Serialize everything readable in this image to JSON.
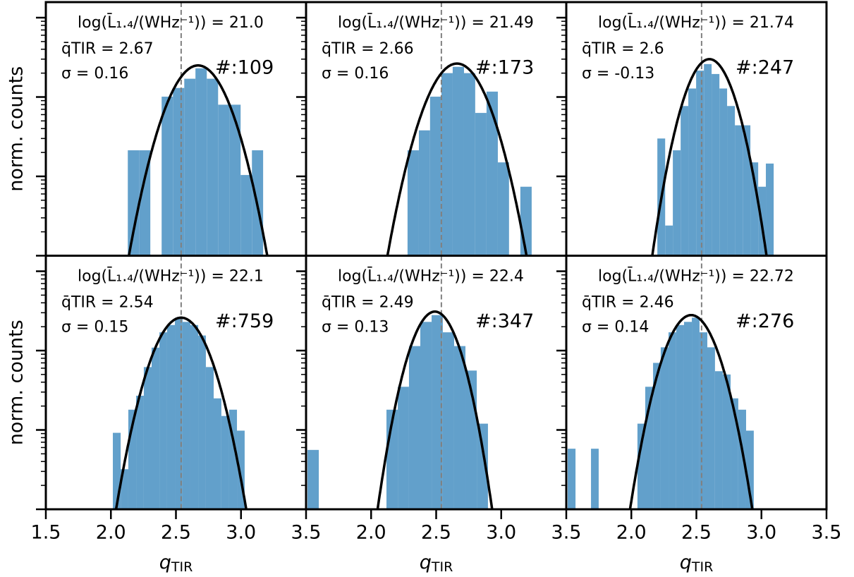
{
  "chart_data": [
    {
      "type": "histogram",
      "annotation": "log(L̄₁.₄/(WHz⁻¹)) = 21.0",
      "q_mean": 2.67,
      "q_mean_label": "q̄TIR = 2.67",
      "sigma": 0.16,
      "sigma_label": "σ = 0.16",
      "n_label": "#:109",
      "fit_amplitude": 0.25,
      "reference_q": 2.54,
      "ylabel": "norm. counts",
      "bins": [
        2.13,
        2.217,
        2.303,
        2.39,
        2.477,
        2.564,
        2.65,
        2.737,
        2.824,
        2.91,
        2.997,
        3.084,
        3.17
      ],
      "counts": [
        0.0213,
        0.0213,
        0,
        0.101,
        0.13,
        0.17,
        0.23,
        0.17,
        0.08,
        0.08,
        0.0104,
        0.0213
      ],
      "color": "#62a0cb",
      "fit_color": "#000000",
      "text_color": "#0000ff",
      "log_y": true,
      "xlim": [
        1.5,
        3.5
      ],
      "ylim": [
        0.001,
        1.57
      ],
      "yticks": [
        0.001,
        0.01,
        0.1,
        1
      ]
    },
    {
      "type": "histogram",
      "annotation": "log(L̄₁.₄/(WHz⁻¹)) = 21.49",
      "q_mean": 2.66,
      "q_mean_label": "q̄TIR = 2.66",
      "sigma": 0.16,
      "sigma_label": "σ = 0.16",
      "n_label": "#:173",
      "fit_amplitude": 0.264,
      "reference_q": 2.54,
      "bins": [
        2.28,
        2.367,
        2.453,
        2.54,
        2.627,
        2.714,
        2.8,
        2.887,
        2.974,
        3.06,
        3.147,
        3.234
      ],
      "counts": [
        0.0213,
        0.038,
        0.101,
        0.2,
        0.24,
        0.2,
        0.063,
        0.117,
        0.015,
        0,
        0.0074
      ],
      "color": "#62a0cb",
      "fit_color": "#000000",
      "text_color": "#0000ff",
      "log_y": true,
      "xlim": [
        1.5,
        3.5
      ],
      "ylim": [
        0.001,
        1.57
      ],
      "yticks": [
        0.001,
        0.01,
        0.1,
        1
      ]
    },
    {
      "type": "histogram",
      "annotation": "log(L̄₁.₄/(WHz⁻¹)) = 21.74",
      "q_mean": 2.6,
      "q_mean_label": "q̄TIR = 2.6",
      "sigma": -0.13,
      "sigma_label": "σ = -0.13",
      "n_label": "#:247",
      "fit_amplitude": 0.3,
      "reference_q": 2.54,
      "bins": [
        2.2,
        2.26,
        2.319,
        2.379,
        2.438,
        2.498,
        2.558,
        2.617,
        2.677,
        2.736,
        2.796,
        2.856,
        2.915,
        2.975,
        3.034,
        3.094
      ],
      "counts": [
        0.03,
        0.0024,
        0.0213,
        0.077,
        0.128,
        0.215,
        0.26,
        0.195,
        0.128,
        0.077,
        0.044,
        0.044,
        0.015,
        0.0074,
        0.0145
      ],
      "color": "#62a0cb",
      "fit_color": "#000000",
      "text_color": "#0000ff",
      "log_y": true,
      "xlim": [
        1.5,
        3.5
      ],
      "ylim": [
        0.001,
        1.57
      ],
      "yticks": [
        0.001,
        0.01,
        0.1,
        1
      ]
    },
    {
      "type": "histogram",
      "annotation": "log(L̄₁.₄/(WHz⁻¹)) = 22.1",
      "q_mean": 2.54,
      "q_mean_label": "q̄TIR = 2.54",
      "sigma": 0.15,
      "sigma_label": "σ = 0.15",
      "n_label": "#:759",
      "fit_amplitude": 0.26,
      "reference_q": 2.54,
      "ylabel": "norm. counts",
      "xlabel": {
        "symbol": "q",
        "subscript": "TIR"
      },
      "bins": [
        2.015,
        2.075,
        2.134,
        2.194,
        2.253,
        2.313,
        2.373,
        2.432,
        2.492,
        2.551,
        2.611,
        2.671,
        2.73,
        2.79,
        2.849,
        2.909,
        2.969,
        3.028
      ],
      "counts": [
        0.0092,
        0.0032,
        0.018,
        0.027,
        0.062,
        0.109,
        0.17,
        0.21,
        0.26,
        0.23,
        0.21,
        0.155,
        0.062,
        0.025,
        0.015,
        0.018,
        0.0098
      ],
      "color": "#62a0cb",
      "fit_color": "#000000",
      "text_color": "#0000ff",
      "log_y": true,
      "xlim": [
        1.5,
        3.5
      ],
      "ylim": [
        0.001,
        1.57
      ],
      "yticks": [
        0.001,
        0.01,
        0.1,
        1
      ],
      "xticks": [
        {
          "value": 1.5,
          "label": "1.5"
        },
        {
          "value": 2.0,
          "label": "2.0"
        },
        {
          "value": 2.5,
          "label": "2.5"
        },
        {
          "value": 3.0,
          "label": "3.0"
        },
        {
          "value": 3.5,
          "label": "3.5"
        }
      ]
    },
    {
      "type": "histogram",
      "annotation": "log(L̄₁.₄/(WHz⁻¹)) = 22.4",
      "q_mean": 2.49,
      "q_mean_label": "q̄TIR = 2.49",
      "sigma": 0.13,
      "sigma_label": "σ = 0.13",
      "n_label": "#:347",
      "fit_amplitude": 0.31,
      "reference_q": 2.54,
      "xlabel": {
        "symbol": "q",
        "subscript": "TIR"
      },
      "bins": [
        1.511,
        1.598,
        1.684,
        1.771,
        1.858,
        1.944,
        2.031,
        2.118,
        2.205,
        2.291,
        2.378,
        2.465,
        2.551,
        2.638,
        2.725,
        2.812,
        2.898
      ],
      "counts": [
        0.0056,
        0,
        0,
        0,
        0,
        0,
        0,
        0.018,
        0.035,
        0.114,
        0.23,
        0.28,
        0.17,
        0.114,
        0.056,
        0.012
      ],
      "color": "#62a0cb",
      "fit_color": "#000000",
      "text_color": "#0000ff",
      "log_y": true,
      "xlim": [
        1.5,
        3.5
      ],
      "ylim": [
        0.001,
        1.57
      ],
      "yticks": [
        0.001,
        0.01,
        0.1,
        1
      ],
      "xticks": [
        {
          "value": 2.0,
          "label": "2.0"
        },
        {
          "value": 2.5,
          "label": "2.5"
        },
        {
          "value": 3.0,
          "label": "3.0"
        },
        {
          "value": 3.5,
          "label": "3.5"
        }
      ]
    },
    {
      "type": "histogram",
      "annotation": "log(L̄₁.₄/(WHz⁻¹)) = 22.72",
      "q_mean": 2.46,
      "q_mean_label": "q̄TIR = 2.46",
      "sigma": 0.14,
      "sigma_label": "σ = 0.14",
      "n_label": "#:276",
      "fit_amplitude": 0.28,
      "reference_q": 2.54,
      "xlabel": {
        "symbol": "q",
        "subscript": "TIR"
      },
      "bins": [
        1.511,
        1.571,
        1.63,
        1.69,
        1.749,
        1.809,
        1.869,
        1.928,
        1.988,
        2.047,
        2.107,
        2.167,
        2.226,
        2.286,
        2.345,
        2.405,
        2.465,
        2.524,
        2.584,
        2.643,
        2.703,
        2.763,
        2.822,
        2.882,
        2.941
      ],
      "counts": [
        0.0058,
        0,
        0,
        0.0058,
        0,
        0,
        0,
        0,
        0,
        0.012,
        0.035,
        0.07,
        0.11,
        0.17,
        0.21,
        0.23,
        0.26,
        0.17,
        0.11,
        0.055,
        0.05,
        0.025,
        0.018,
        0.0098
      ],
      "color": "#62a0cb",
      "fit_color": "#000000",
      "text_color": "#0000ff",
      "log_y": true,
      "xlim": [
        1.5,
        3.5
      ],
      "ylim": [
        0.001,
        1.57
      ],
      "yticks": [
        0.001,
        0.01,
        0.1,
        1
      ],
      "xticks": [
        {
          "value": 2.0,
          "label": "2.0"
        },
        {
          "value": 2.5,
          "label": "2.5"
        },
        {
          "value": 3.0,
          "label": "3.0"
        },
        {
          "value": 3.5,
          "label": "3.5"
        }
      ]
    }
  ]
}
